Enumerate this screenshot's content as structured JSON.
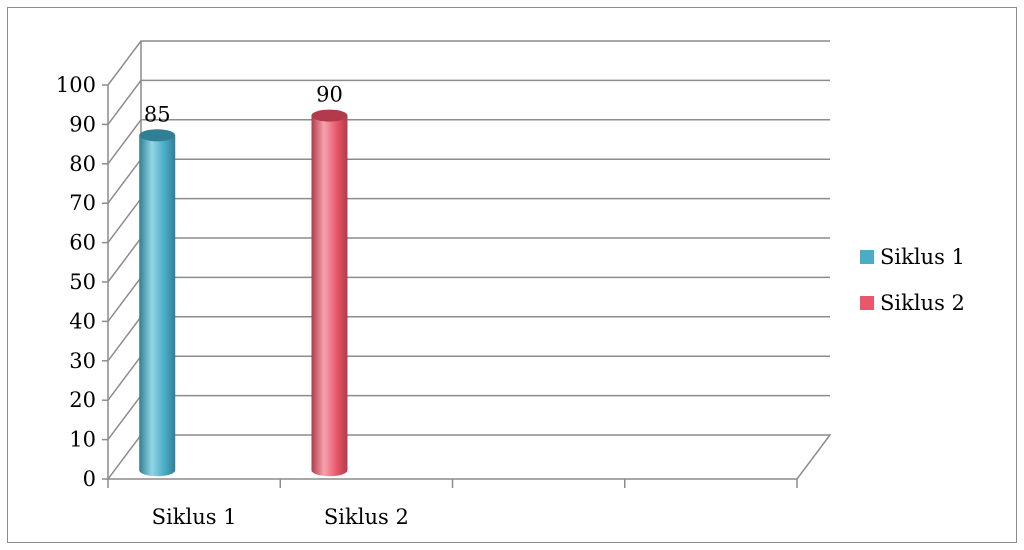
{
  "chart_data": {
    "type": "bar",
    "style": "3d-cylinder",
    "categories": [
      "Siklus 1",
      "Siklus 2",
      "",
      ""
    ],
    "series": [
      {
        "name": "Siklus 1",
        "color": "#4bacc6",
        "values": [
          85,
          null,
          null,
          null
        ]
      },
      {
        "name": "Siklus 2",
        "color": "#e8576b",
        "values": [
          null,
          90,
          null,
          null
        ]
      }
    ],
    "data_labels": [
      "85",
      "90"
    ],
    "ylim": [
      0,
      100
    ],
    "y_ticks": [
      0,
      10,
      20,
      30,
      40,
      50,
      60,
      70,
      80,
      90,
      100
    ],
    "grid": true,
    "legend": {
      "position": "right",
      "entries": [
        "Siklus 1",
        "Siklus 2"
      ]
    },
    "title": "",
    "xlabel": "",
    "ylabel": ""
  },
  "colors": {
    "grid": "#8c8c8c",
    "axis": "#8c8c8c",
    "siklus1_light": "#92d5e6",
    "siklus1_dark": "#2f7f95",
    "siklus2_light": "#f7a3ae",
    "siklus2_dark": "#b33a4a"
  }
}
